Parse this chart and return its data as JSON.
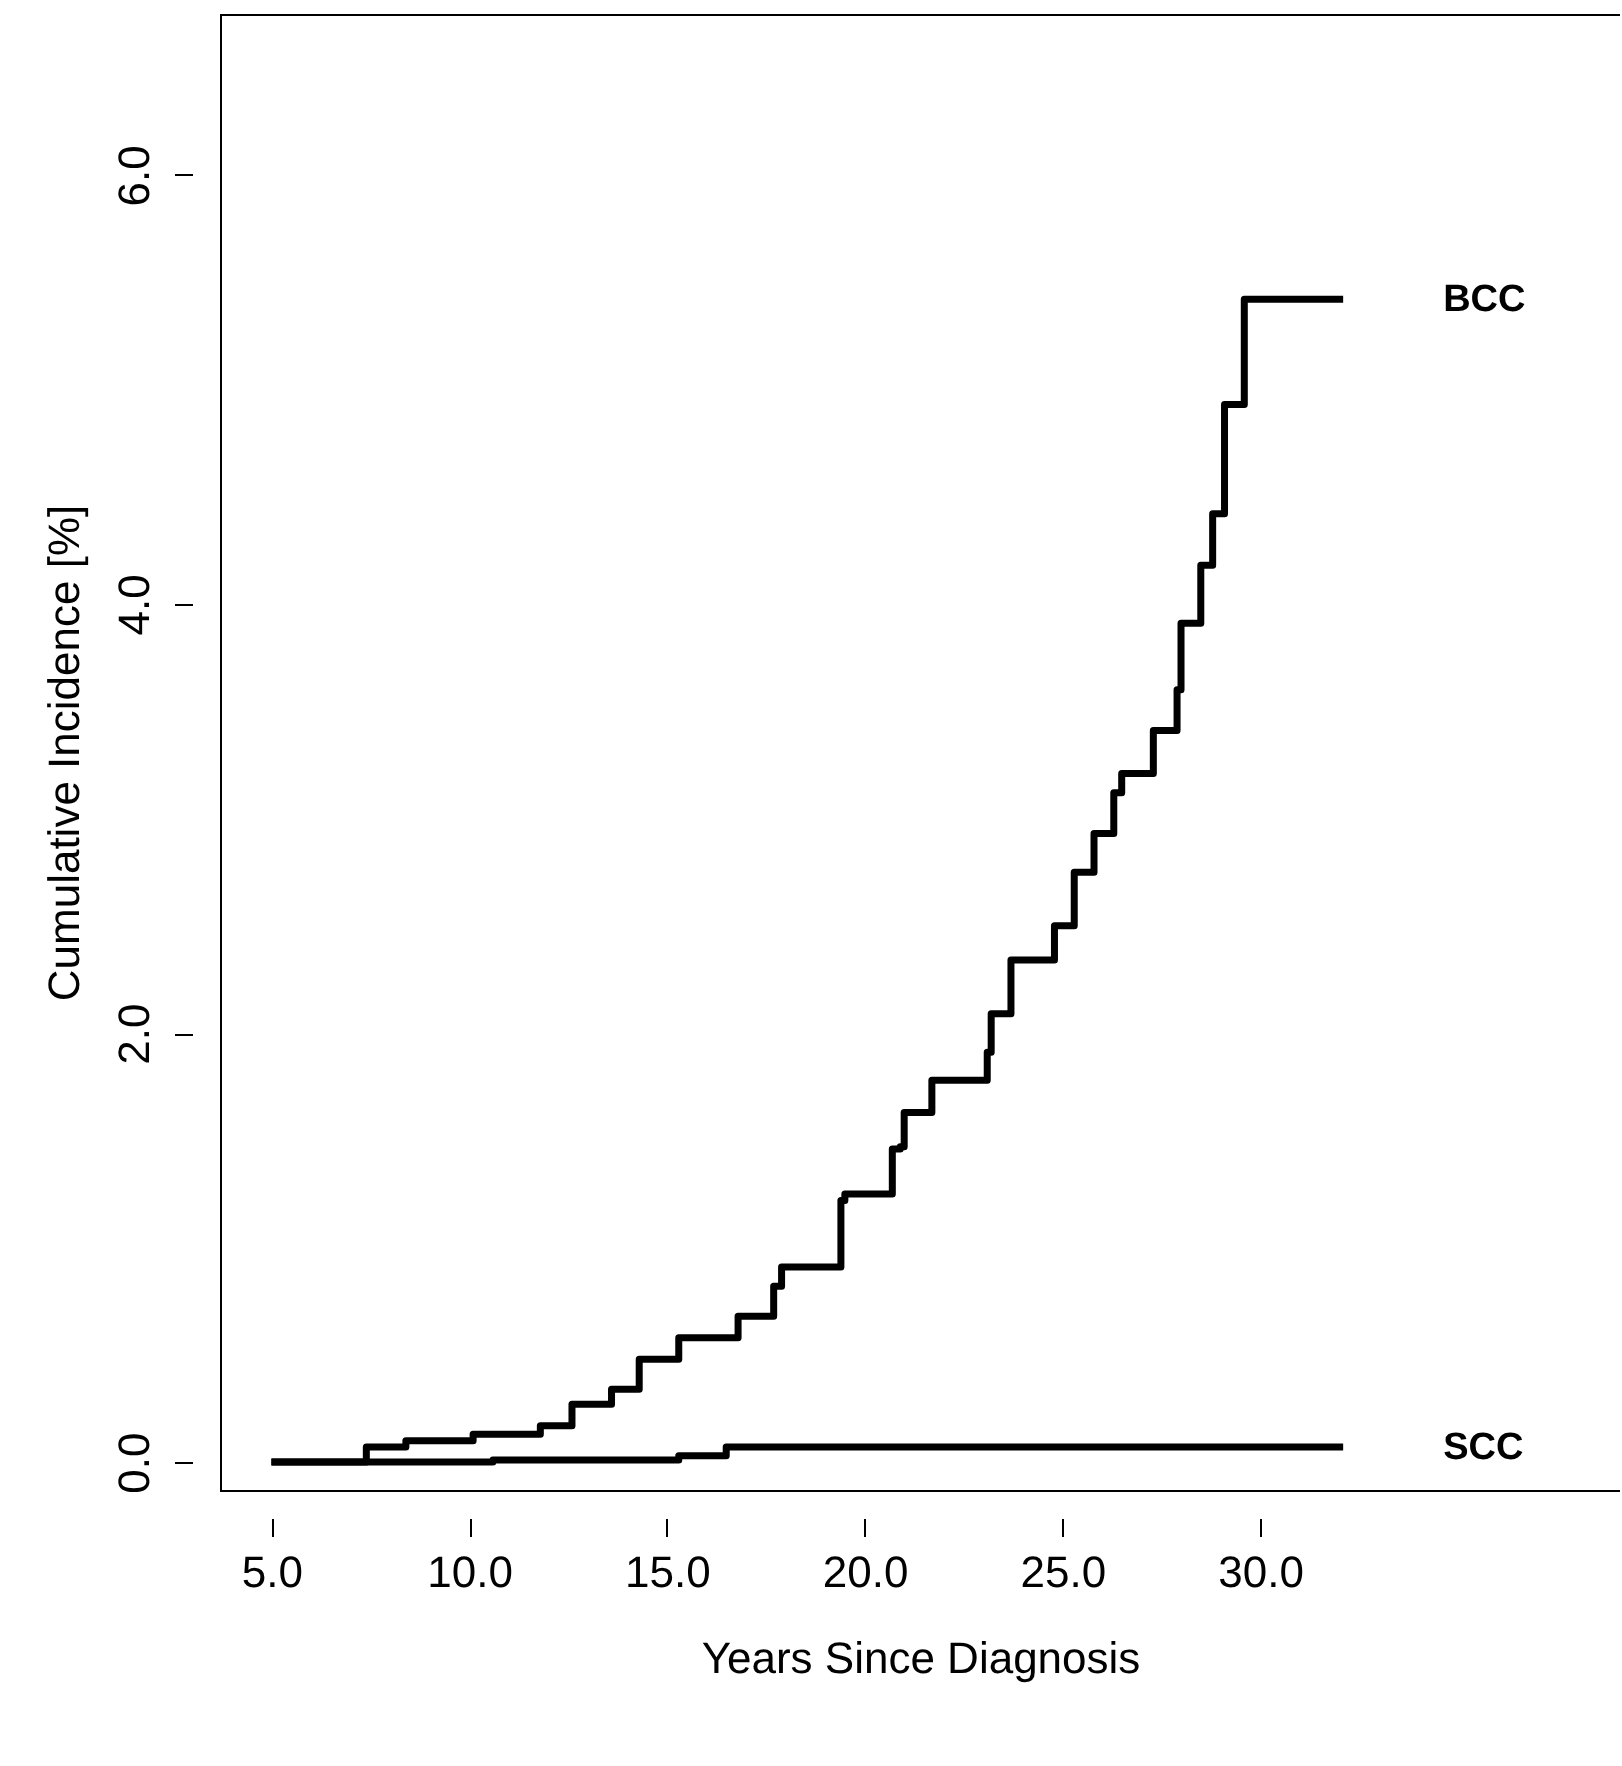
{
  "chart_data": {
    "type": "step",
    "xlabel": "Years Since Diagnosis",
    "ylabel": "Cumulative Incidence [%]",
    "xlim": [
      3.7,
      39.1
    ],
    "ylim": [
      -0.13,
      6.75
    ],
    "xticks": [
      {
        "value": 5,
        "label": "5.0"
      },
      {
        "value": 10,
        "label": "10.0"
      },
      {
        "value": 15,
        "label": "15.0"
      },
      {
        "value": 20,
        "label": "20.0"
      },
      {
        "value": 25,
        "label": "25.0"
      },
      {
        "value": 30,
        "label": "30.0"
      }
    ],
    "yticks": [
      {
        "value": 0,
        "label": "0.0"
      },
      {
        "value": 2,
        "label": "2.0"
      },
      {
        "value": 4,
        "label": "4.0"
      },
      {
        "value": 6,
        "label": "6.0"
      }
    ],
    "grid": false,
    "line_style": "solid",
    "marker": "none",
    "series": [
      {
        "name": "BCC",
        "color": "#000000",
        "x": [
          5.0,
          7.4,
          8.4,
          10.1,
          11.8,
          12.6,
          13.6,
          14.3,
          15.3,
          16.8,
          17.7,
          17.9,
          19.4,
          19.5,
          20.7,
          20.9,
          21.0,
          21.7,
          21.9,
          23.1,
          23.2,
          23.7,
          24.3,
          24.8,
          25.3,
          25.8,
          26.3,
          26.5,
          27.3,
          27.9,
          28.0,
          28.5,
          28.8,
          29.1,
          29.6,
          32.1
        ],
        "values": [
          0.0,
          0.07,
          0.1,
          0.13,
          0.17,
          0.27,
          0.34,
          0.48,
          0.58,
          0.68,
          0.82,
          0.91,
          1.22,
          1.25,
          1.46,
          1.47,
          1.63,
          1.78,
          1.78,
          1.91,
          2.09,
          2.34,
          2.34,
          2.5,
          2.75,
          2.93,
          3.12,
          3.21,
          3.41,
          3.6,
          3.91,
          4.18,
          4.42,
          4.93,
          5.42,
          5.42
        ]
      },
      {
        "name": "SCC",
        "color": "#000000",
        "x": [
          5.0,
          10.6,
          15.3,
          16.5,
          32.1
        ],
        "values": [
          0.0,
          0.01,
          0.03,
          0.07,
          0.07
        ]
      }
    ]
  }
}
